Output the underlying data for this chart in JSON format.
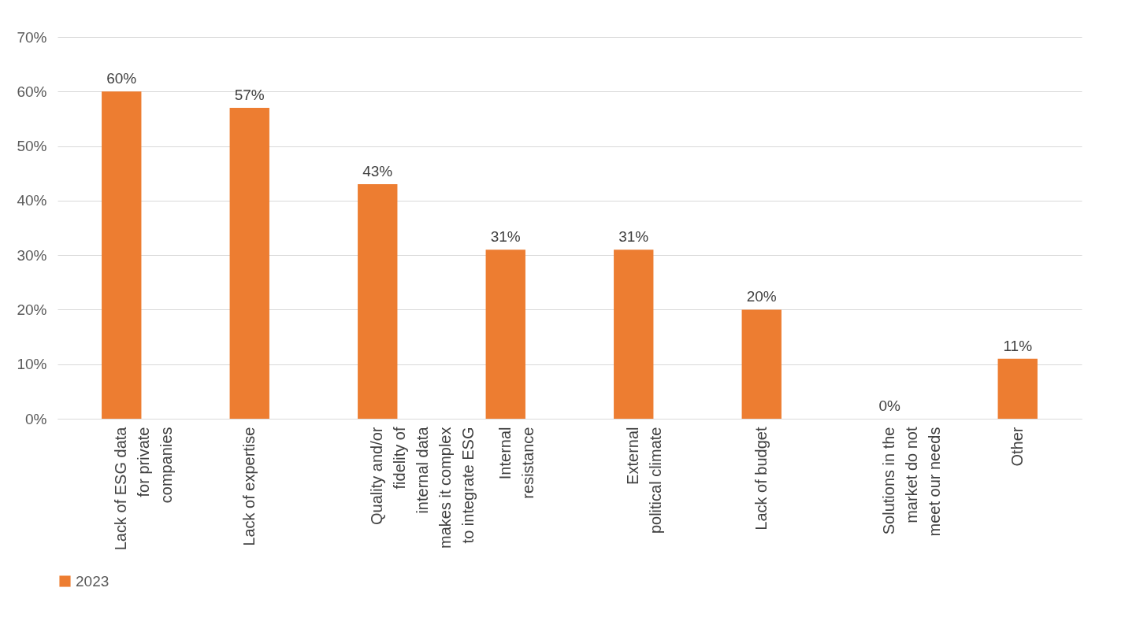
{
  "chart_data": {
    "type": "bar",
    "categories": [
      "Lack of ESG data for private companies",
      "Lack of expertise",
      "Quality and/or fidelity of internal data makes it complex to integrate ESG",
      "Internal resistance",
      "External political climate",
      "Lack of budget",
      "Solutions in the market do not meet our needs",
      "Other"
    ],
    "series": [
      {
        "name": "2023",
        "color": "#ed7d31",
        "values": [
          60,
          57,
          43,
          31,
          31,
          20,
          0,
          11
        ],
        "value_labels": [
          "60%",
          "57%",
          "43%",
          "31%",
          "31%",
          "20%",
          "0%",
          "11%"
        ]
      }
    ],
    "ylim": [
      0,
      70
    ],
    "yticks": [
      {
        "value": 0,
        "label": "0%"
      },
      {
        "value": 10,
        "label": "10%"
      },
      {
        "value": 20,
        "label": "20%"
      },
      {
        "value": 30,
        "label": "30%"
      },
      {
        "value": 40,
        "label": "40%"
      },
      {
        "value": 50,
        "label": "50%"
      },
      {
        "value": 60,
        "label": "60%"
      },
      {
        "value": 70,
        "label": "70%"
      }
    ],
    "grid": "y",
    "legend": "bottom"
  }
}
